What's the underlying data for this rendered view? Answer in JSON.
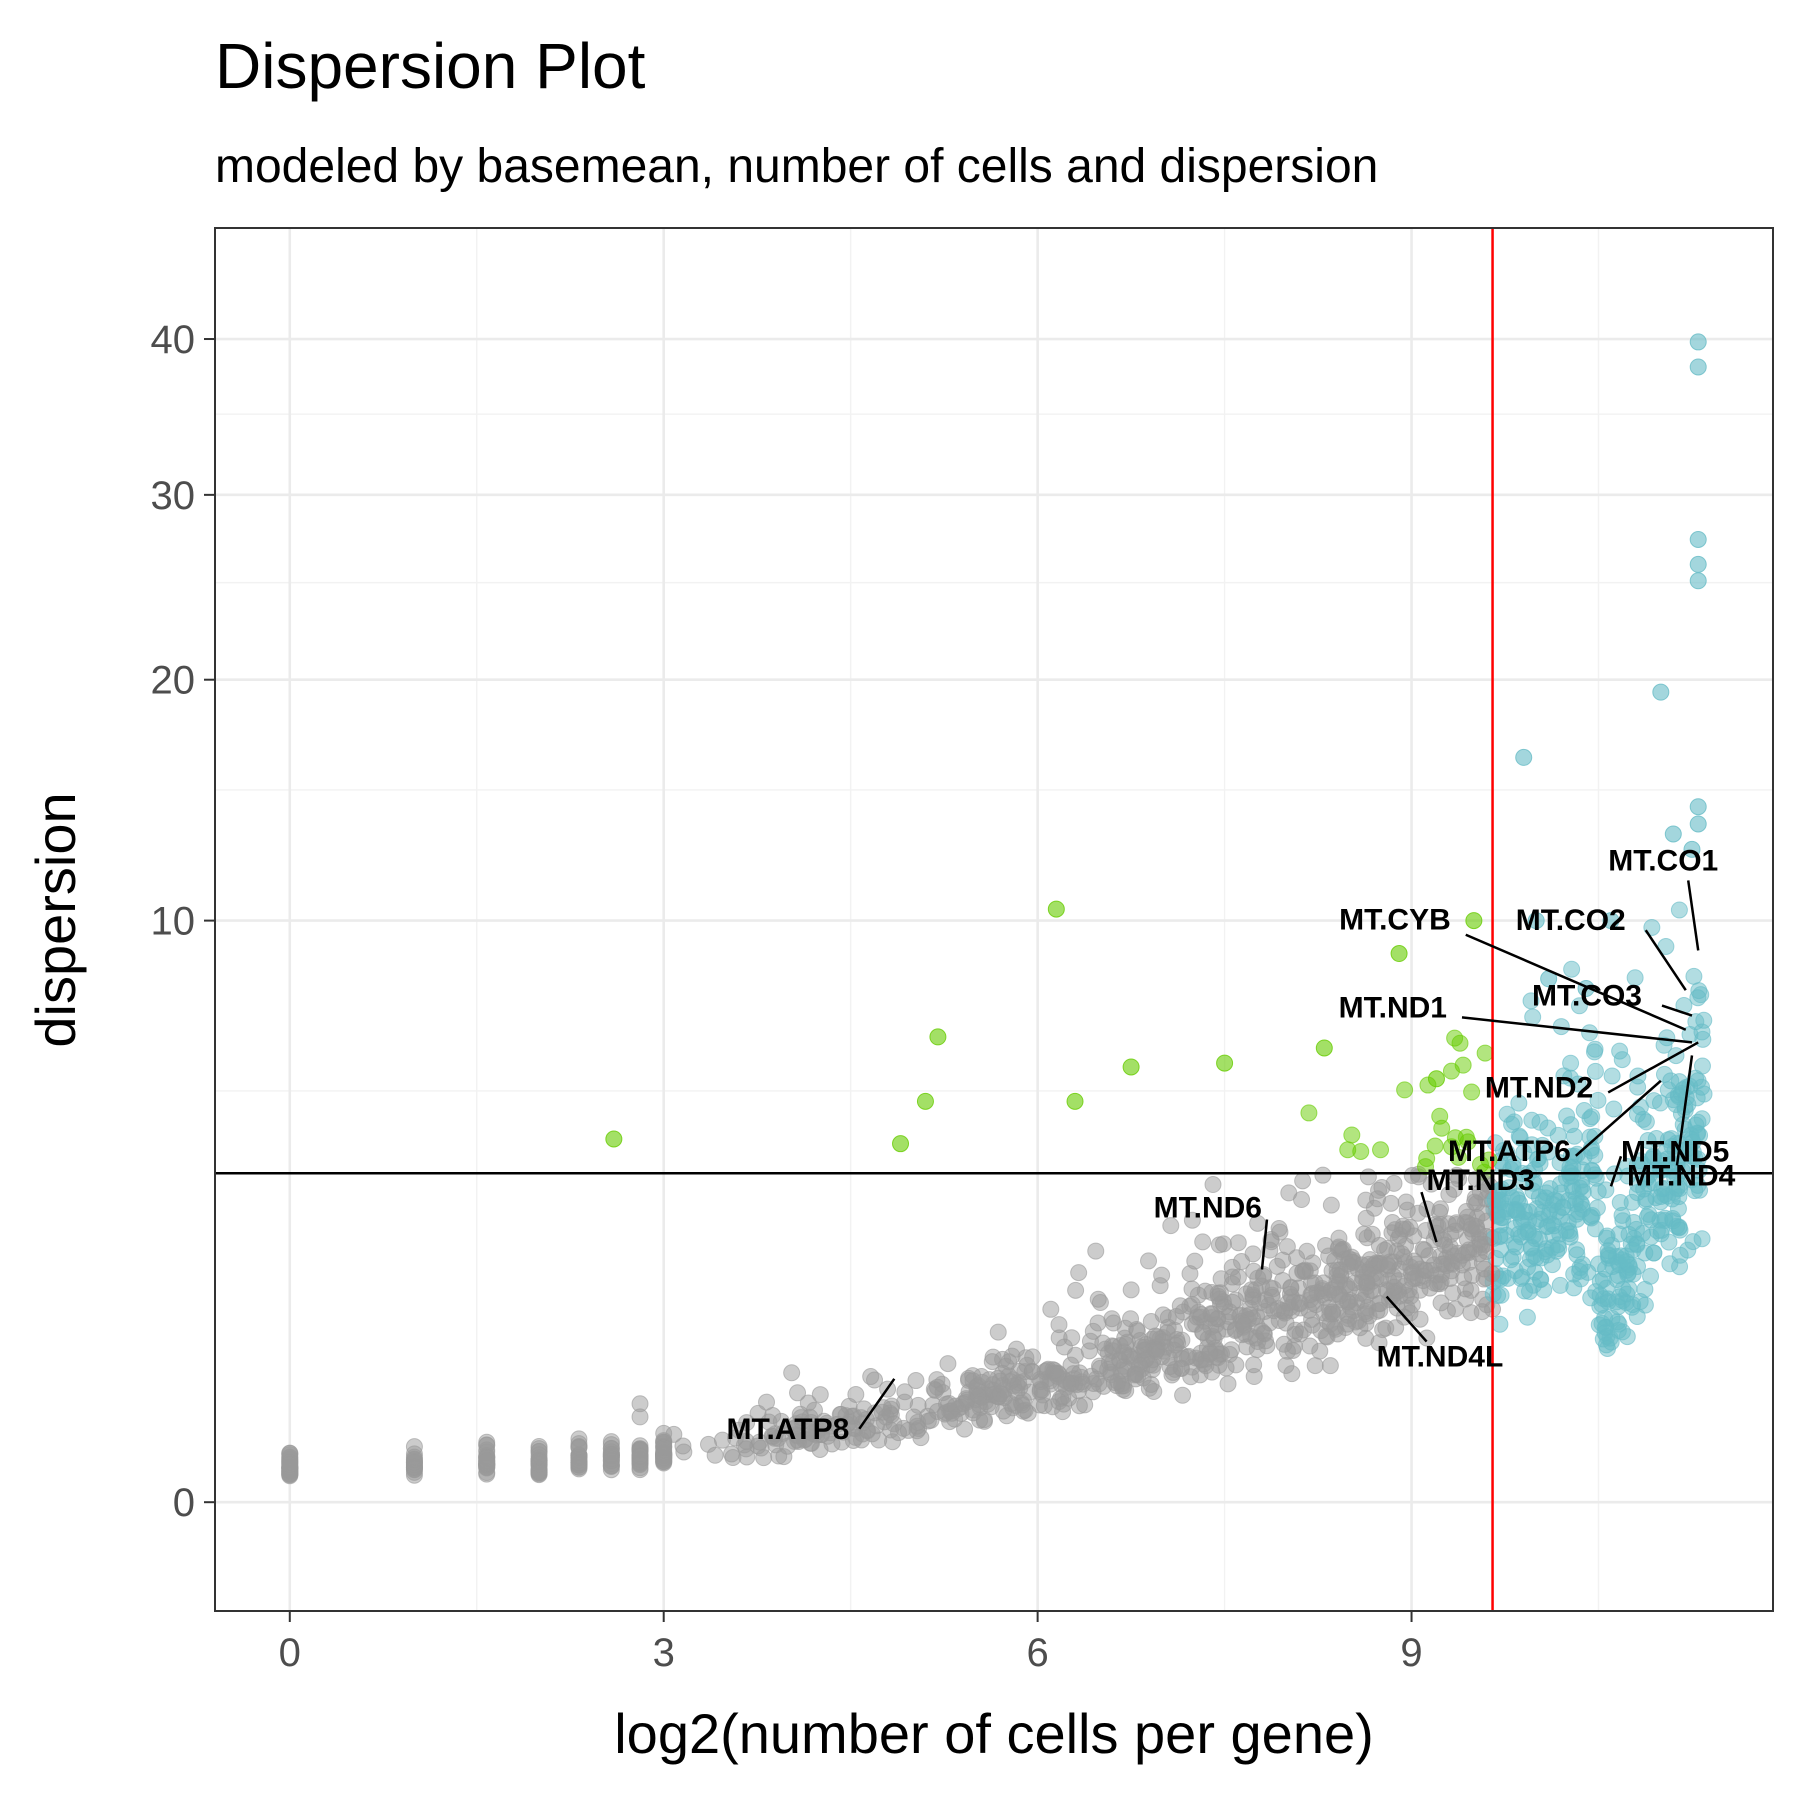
{
  "chart_data": {
    "type": "scatter",
    "title": "Dispersion Plot",
    "subtitle": "modeled by basemean, number of cells and dispersion",
    "xlabel": "log2(number of cells per gene)",
    "ylabel": "dispersion",
    "xlim": [
      -0.6,
      11.9
    ],
    "ylim": [
      -0.35,
      48
    ],
    "y_scale": "square-root",
    "x_ticks": [
      0,
      3,
      6,
      9
    ],
    "x_minor_ticks": [
      1.5,
      4.5,
      7.5,
      10.5
    ],
    "y_ticks": [
      0,
      10,
      20,
      30,
      40
    ],
    "y_minor_ticks": [
      5,
      15,
      25,
      35
    ],
    "grid": true,
    "legend": "none",
    "thresholds": {
      "vertical_x": 9.65,
      "vertical_color": "#ff0000",
      "horizontal_y": 3.2,
      "horizontal_color": "#000000"
    },
    "colors": {
      "below_threshold": "#999999",
      "high_dispersion": "#66cc00",
      "high_cell_count": "#66bbc6"
    },
    "highlighted_points": [
      {
        "x": 2.6,
        "y": 3.9,
        "group": "high_dispersion"
      },
      {
        "x": 5.1,
        "y": 4.75,
        "group": "high_dispersion"
      },
      {
        "x": 5.2,
        "y": 6.4,
        "group": "high_dispersion"
      },
      {
        "x": 6.15,
        "y": 10.4,
        "group": "high_dispersion"
      },
      {
        "x": 6.75,
        "y": 5.6,
        "group": "high_dispersion"
      },
      {
        "x": 7.5,
        "y": 5.7,
        "group": "high_dispersion"
      },
      {
        "x": 8.3,
        "y": 6.1,
        "group": "high_dispersion"
      },
      {
        "x": 8.9,
        "y": 8.9,
        "group": "high_dispersion"
      },
      {
        "x": 9.5,
        "y": 10.0,
        "group": "high_dispersion"
      },
      {
        "x": 6.3,
        "y": 4.75,
        "group": "high_dispersion"
      },
      {
        "x": 4.9,
        "y": 3.8,
        "group": "high_dispersion"
      },
      {
        "x": 9.2,
        "y": 5.3,
        "group": "high_dispersion"
      },
      {
        "x": 9.9,
        "y": 16.4,
        "group": "high_cell_count"
      },
      {
        "x": 11.0,
        "y": 19.4,
        "group": "high_cell_count"
      },
      {
        "x": 11.3,
        "y": 39.8,
        "group": "high_cell_count"
      },
      {
        "x": 11.3,
        "y": 38.1,
        "group": "high_cell_count"
      },
      {
        "x": 11.3,
        "y": 27.4,
        "group": "high_cell_count"
      },
      {
        "x": 11.3,
        "y": 26.0,
        "group": "high_cell_count"
      },
      {
        "x": 11.3,
        "y": 25.1,
        "group": "high_cell_count"
      },
      {
        "x": 11.3,
        "y": 14.3,
        "group": "high_cell_count"
      },
      {
        "x": 11.3,
        "y": 13.6,
        "group": "high_cell_count"
      },
      {
        "x": 11.25,
        "y": 12.6,
        "group": "high_cell_count"
      },
      {
        "x": 11.1,
        "y": 13.2,
        "group": "high_cell_count"
      },
      {
        "x": 10.6,
        "y": 10.0,
        "group": "high_cell_count"
      },
      {
        "x": 10.0,
        "y": 10.0,
        "group": "high_cell_count"
      },
      {
        "x": 10.1,
        "y": 8.1,
        "group": "high_cell_count"
      },
      {
        "x": 10.4,
        "y": 7.8,
        "group": "high_cell_count"
      }
    ],
    "labels": [
      {
        "text": "MT.CO1",
        "x": 11.3,
        "y": 9.0
      },
      {
        "text": "MT.CO2",
        "x": 11.2,
        "y": 7.75
      },
      {
        "text": "MT.CYB",
        "x": 11.2,
        "y": 6.6
      },
      {
        "text": "MT.CO3",
        "x": 11.25,
        "y": 7.0
      },
      {
        "text": "MT.ND1",
        "x": 11.25,
        "y": 6.25
      },
      {
        "text": "MT.ND2",
        "x": 11.3,
        "y": 6.25
      },
      {
        "text": "MT.ATP6",
        "x": 11.0,
        "y": 5.25
      },
      {
        "text": "MT.ND4",
        "x": 11.25,
        "y": 5.9
      },
      {
        "text": "MT.ND5",
        "x": 10.6,
        "y": 2.95
      },
      {
        "text": "MT.ND3",
        "x": 9.2,
        "y": 2.0
      },
      {
        "text": "MT.ND6",
        "x": 7.8,
        "y": 1.6
      },
      {
        "text": "MT.ND4L",
        "x": 8.8,
        "y": 1.25
      },
      {
        "text": "MT.ATP8",
        "x": 4.85,
        "y": 0.45
      }
    ]
  }
}
